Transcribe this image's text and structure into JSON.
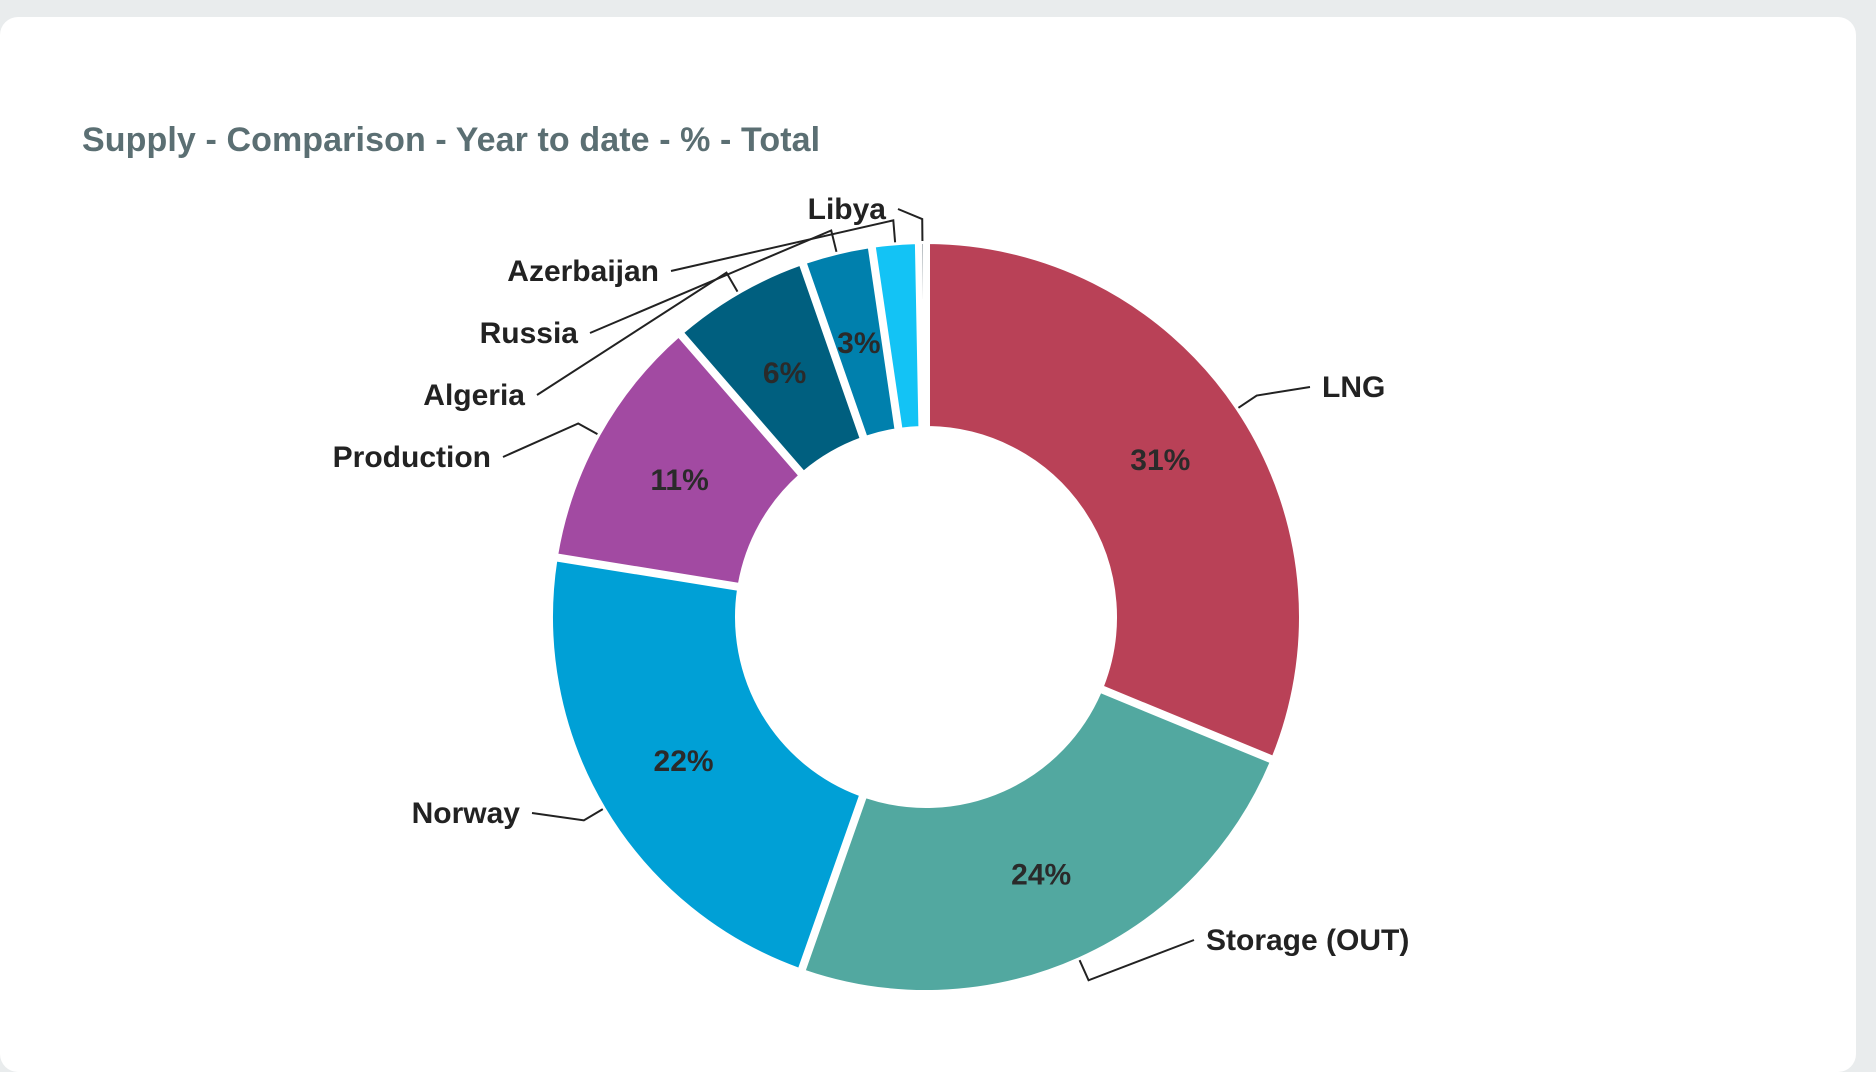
{
  "card": {
    "title": "Supply - Comparison - Year to date - % - Total"
  },
  "chart_data": {
    "type": "pie",
    "donut": true,
    "title": "Supply - Comparison - Year to date - % - Total",
    "slices": [
      {
        "name": "LNG",
        "value": 31,
        "label": "31%",
        "color": "#b94157"
      },
      {
        "name": "Storage (OUT)",
        "value": 24,
        "label": "24%",
        "color": "#52a8a0"
      },
      {
        "name": "Norway",
        "value": 22,
        "label": "22%",
        "color": "#00a0d6"
      },
      {
        "name": "Production",
        "value": 11,
        "label": "11%",
        "color": "#a24aa2"
      },
      {
        "name": "Algeria",
        "value": 6,
        "label": "6%",
        "color": "#005f7f"
      },
      {
        "name": "Russia",
        "value": 3,
        "label": "3%",
        "color": "#0080ad"
      },
      {
        "name": "Azerbaijan",
        "value": 2,
        "label": "",
        "color": "#13c3f5"
      },
      {
        "name": "Libya",
        "value": 0.3,
        "label": "",
        "color": "#2c3e4a"
      }
    ],
    "start_angle_deg": 0,
    "direction": "clockwise",
    "legend": "none (labels with leader lines)"
  }
}
